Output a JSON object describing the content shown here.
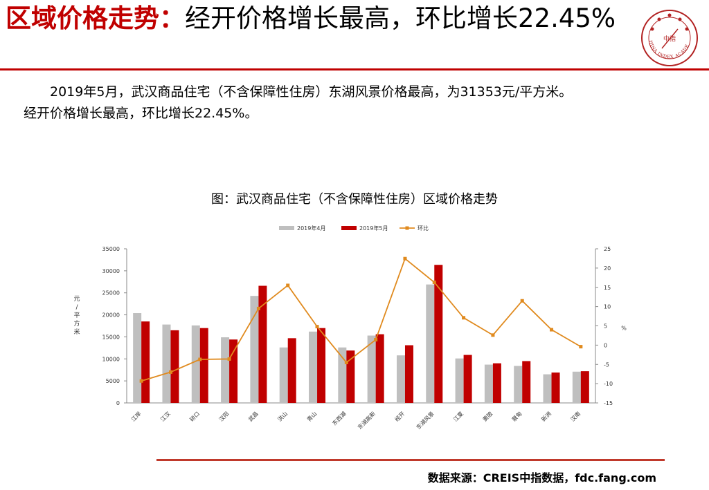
{
  "header": {
    "title_highlight": "区域价格走势：",
    "title_rest": "经开价格增长最高，环比增长22.45%"
  },
  "logo": {
    "text": "CHINA INDEX ACADEMY",
    "center_text": "中指"
  },
  "body": {
    "paragraph_line1": "2019年5月，武汉商品住宅（不含保障性住房）东湖风景价格最高，为31353元/平方米。",
    "paragraph_line2": "经开价格增长最高，环比增长22.45%。"
  },
  "figure": {
    "caption": "图：武汉商品住宅（不含保障性住房）区域价格走势"
  },
  "footer": {
    "source": "数据来源：CREIS中指数据，fdc.fang.com"
  },
  "colors": {
    "accent": "#c00000",
    "apr_bar": "#bfbfbf",
    "may_bar": "#c00000",
    "line": "#e08a1e"
  },
  "chart_data": {
    "type": "bar",
    "categories": [
      "江岸",
      "江汉",
      "硚口",
      "汉阳",
      "武昌",
      "洪山",
      "青山",
      "东西湖",
      "东湖高新",
      "经开",
      "东湖风景",
      "江夏",
      "黄陂",
      "蔡甸",
      "新洲",
      "汉南"
    ],
    "series": [
      {
        "name": "2019年4月",
        "type": "bar",
        "axis": "left",
        "values": [
          20400,
          17800,
          17600,
          14900,
          24300,
          12600,
          16200,
          12600,
          15300,
          10800,
          26900,
          10100,
          8700,
          8400,
          6500,
          7100
        ]
      },
      {
        "name": "2019年5月",
        "type": "bar",
        "axis": "left",
        "values": [
          18500,
          16500,
          17000,
          14400,
          26600,
          14700,
          17000,
          11900,
          15600,
          13100,
          31353,
          10900,
          9000,
          9500,
          6900,
          7200
        ]
      },
      {
        "name": "环比",
        "type": "line",
        "axis": "right",
        "values": [
          -9.3,
          -7.0,
          -3.7,
          -3.6,
          9.5,
          15.5,
          4.8,
          -4.5,
          1.4,
          22.45,
          16.3,
          7.1,
          2.6,
          11.5,
          4.0,
          -0.4
        ]
      }
    ],
    "ylabel": "元/平方米",
    "ylim": [
      0,
      35000
    ],
    "yticks": [
      0,
      5000,
      10000,
      15000,
      20000,
      25000,
      30000,
      35000
    ],
    "y2label": "%",
    "y2lim": [
      -15,
      25
    ],
    "y2ticks": [
      -15,
      -10,
      -5,
      0,
      5,
      10,
      15,
      20,
      25
    ],
    "legend_position": "top-center",
    "grid": false
  }
}
